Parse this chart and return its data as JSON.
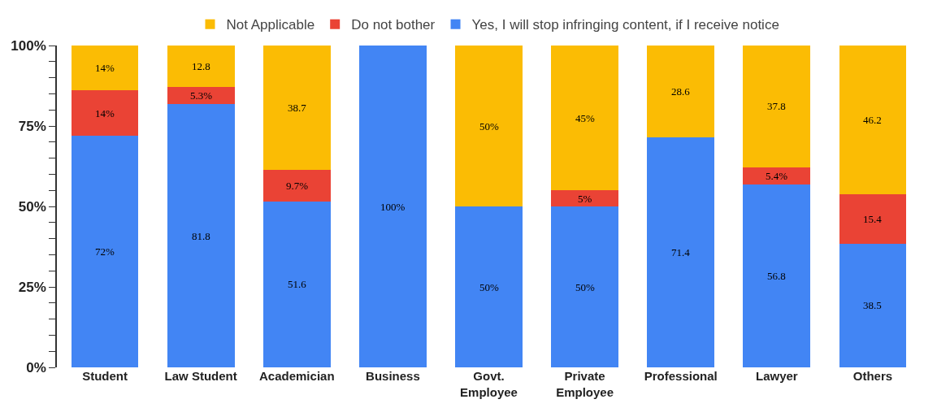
{
  "chart_data": {
    "type": "bar",
    "stacked": true,
    "categories": [
      "Student",
      "Law Student",
      "Academician",
      "Business",
      "Govt. Employee",
      "Private Employee",
      "Professional",
      "Lawyer",
      "Others"
    ],
    "series": [
      {
        "name": "Yes, I will stop infringing content, if I receive notice",
        "color": "#4285f4",
        "values": [
          72,
          81.8,
          51.6,
          100,
          50,
          50,
          71.4,
          56.8,
          38.5
        ],
        "value_labels": [
          "72%",
          "81.8",
          "51.6",
          "100%",
          "50%",
          "50%",
          "71.4",
          "56.8",
          "38.5"
        ]
      },
      {
        "name": "Do not bother",
        "color": "#ea4335",
        "values": [
          14,
          5.3,
          9.7,
          0,
          0,
          5,
          0,
          5.4,
          15.4
        ],
        "value_labels": [
          "14%",
          "5.3%",
          "9.7%",
          null,
          null,
          "5%",
          null,
          "5.4%",
          "15.4"
        ]
      },
      {
        "name": "Not Applicable",
        "color": "#fbbc04",
        "values": [
          14,
          12.8,
          38.7,
          0,
          50,
          45,
          28.6,
          37.8,
          46.2
        ],
        "value_labels": [
          "14%",
          "12.8",
          "38.7",
          null,
          "50%",
          "45%",
          "28.6",
          "37.8",
          "46.2"
        ]
      }
    ],
    "ylim": [
      0,
      100
    ],
    "yticks": [
      {
        "value": 0,
        "label": "0%"
      },
      {
        "value": 5,
        "label": null
      },
      {
        "value": 10,
        "label": null
      },
      {
        "value": 15,
        "label": null
      },
      {
        "value": 20,
        "label": null
      },
      {
        "value": 25,
        "label": "25%"
      },
      {
        "value": 30,
        "label": null
      },
      {
        "value": 35,
        "label": null
      },
      {
        "value": 40,
        "label": null
      },
      {
        "value": 45,
        "label": null
      },
      {
        "value": 50,
        "label": "50%"
      },
      {
        "value": 55,
        "label": null
      },
      {
        "value": 60,
        "label": null
      },
      {
        "value": 65,
        "label": null
      },
      {
        "value": 70,
        "label": null
      },
      {
        "value": 75,
        "label": "75%"
      },
      {
        "value": 80,
        "label": null
      },
      {
        "value": 85,
        "label": null
      },
      {
        "value": 90,
        "label": null
      },
      {
        "value": 95,
        "label": null
      },
      {
        "value": 100,
        "label": "100%"
      }
    ],
    "grid": false,
    "legend": "top"
  }
}
